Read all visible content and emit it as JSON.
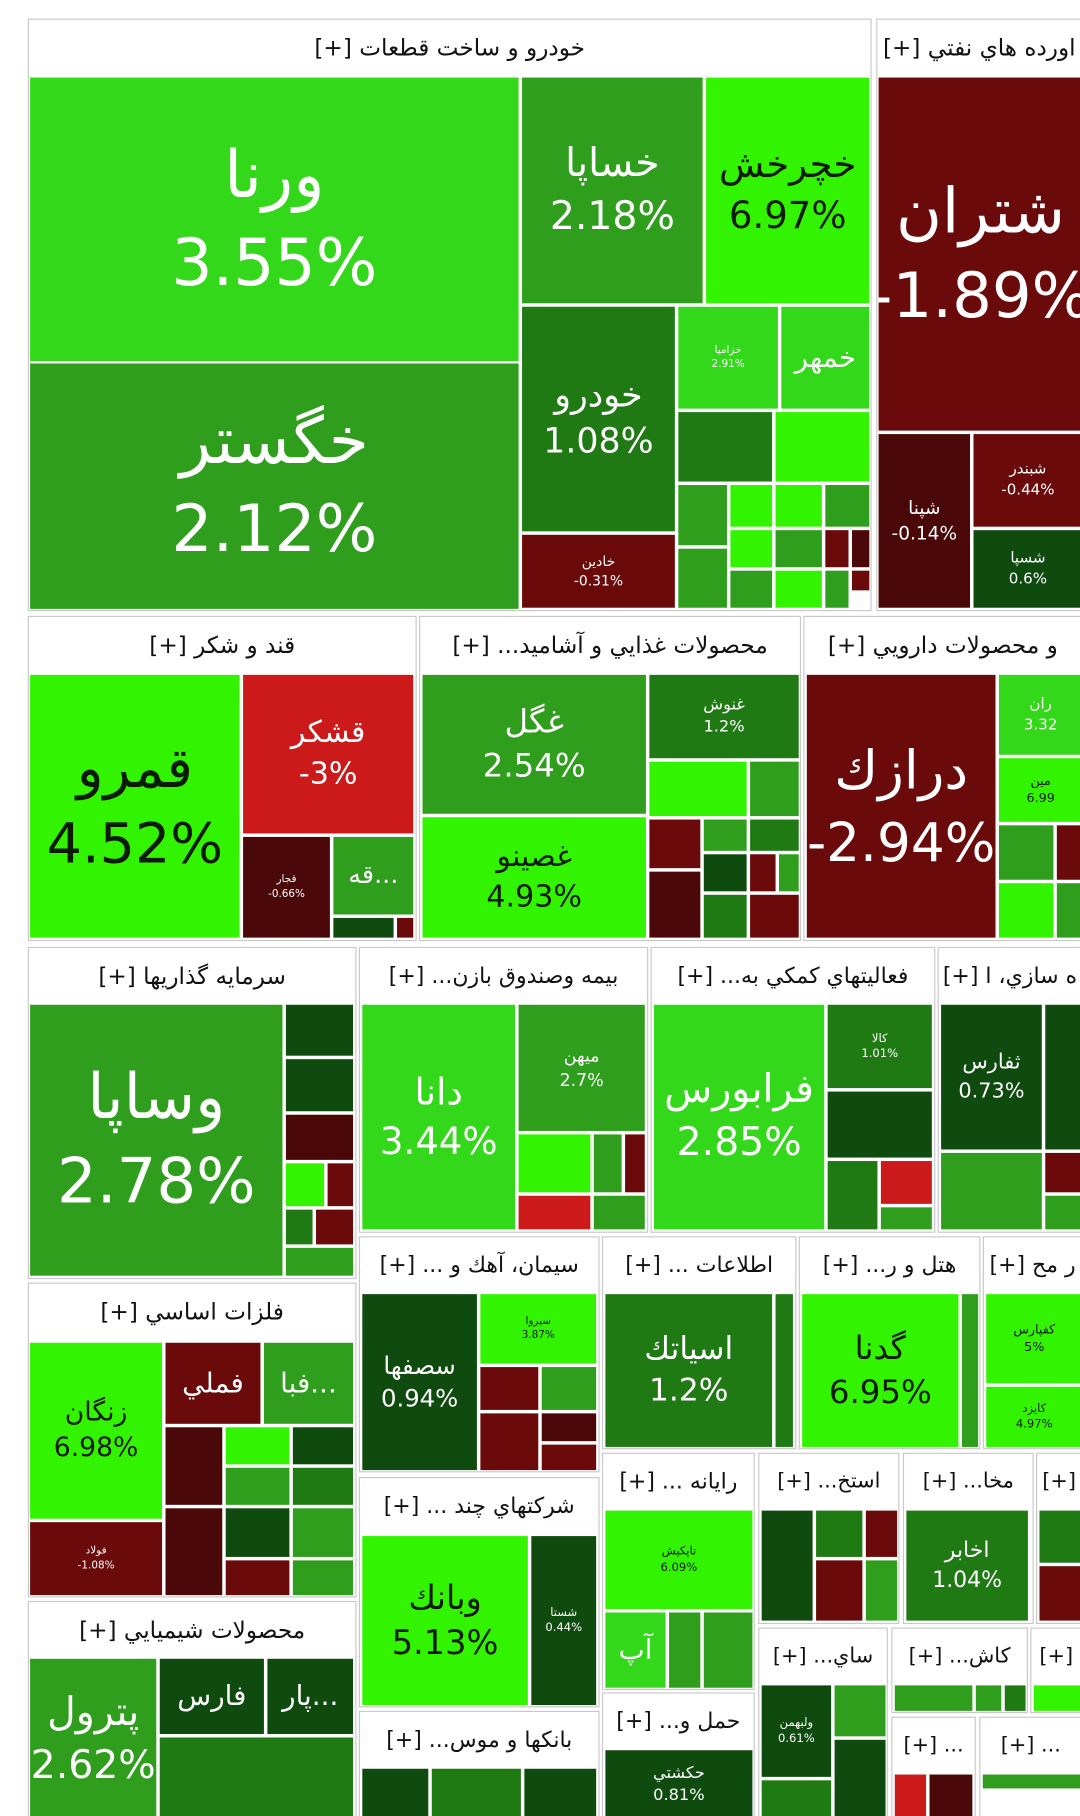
{
  "sectors": [
    {
      "title": "خودرو و ساخت قطعات [+]",
      "tiles": [
        {
          "name": "ورنا",
          "change": "3.55%"
        },
        {
          "name": "خگستر",
          "change": "2.12%"
        },
        {
          "name": "خساپا",
          "change": "2.18%"
        },
        {
          "name": "خچرخش",
          "change": "6.97%"
        },
        {
          "name": "خودرو",
          "change": "1.08%"
        },
        {
          "name": "خادين",
          "change": "-0.31%"
        },
        {
          "name": "خزاميا",
          "change": "2.91%"
        },
        {
          "name": "خمهر"
        }
      ]
    },
    {
      "title": "اورده هاي نفتي [+]",
      "tiles": [
        {
          "name": "شتران",
          "change": "-1.89%"
        },
        {
          "name": "شپنا",
          "change": "-0.14%"
        },
        {
          "name": "شبندر",
          "change": "-0.44%"
        },
        {
          "name": "شسپا",
          "change": "0.6%"
        }
      ]
    },
    {
      "title": "قند و شكر [+]",
      "tiles": [
        {
          "name": "قمرو",
          "change": "4.52%"
        },
        {
          "name": "قشكر",
          "change": "-3%"
        },
        {
          "name": "قجار",
          "change": "-0.66%"
        },
        {
          "name": "قه..."
        }
      ]
    },
    {
      "title": "محصولات غذايي و آشاميد... [+]",
      "tiles": [
        {
          "name": "غگل",
          "change": "2.54%"
        },
        {
          "name": "غصينو",
          "change": "4.93%"
        },
        {
          "name": "غنوش",
          "change": "1.2%"
        }
      ]
    },
    {
      "title": "و محصولات دارويي [+]",
      "tiles": [
        {
          "name": "درازك",
          "change": "-2.94%"
        },
        {
          "name": "ران",
          "change": "3.32"
        },
        {
          "name": "مين",
          "change": "6.99"
        }
      ]
    },
    {
      "title": "سرمايه گذاريها [+]",
      "tiles": [
        {
          "name": "وساپا",
          "change": "2.78%"
        }
      ]
    },
    {
      "title": "بيمه وصندوق بازن... [+]",
      "tiles": [
        {
          "name": "دانا",
          "change": "3.44%"
        },
        {
          "name": "ميهن",
          "change": "2.7%"
        }
      ]
    },
    {
      "title": "فعاليتهاي كمكي به... [+]",
      "tiles": [
        {
          "name": "فرابورس",
          "change": "2.85%"
        },
        {
          "name": "كالا",
          "change": "1.01%"
        }
      ]
    },
    {
      "title": "ه سازي، ا [+]",
      "tiles": [
        {
          "name": "ثفارس",
          "change": "0.73%"
        }
      ]
    },
    {
      "title": "فلزات اساسي [+]",
      "tiles": [
        {
          "name": "زنگان",
          "change": "6.98%"
        },
        {
          "name": "فملي"
        },
        {
          "name": "فبا..."
        },
        {
          "name": "فولاد",
          "change": "-1.08%"
        }
      ]
    },
    {
      "title": "سيمان، آهك و ... [+]",
      "tiles": [
        {
          "name": "سصفها",
          "change": "0.94%"
        },
        {
          "name": "سيروا",
          "change": "3.87%"
        }
      ]
    },
    {
      "title": "اطلاعات ... [+]",
      "tiles": [
        {
          "name": "اسياتك",
          "change": "1.2%"
        }
      ]
    },
    {
      "title": "هتل و ر... [+]",
      "tiles": [
        {
          "name": "گدنا",
          "change": "6.95%"
        }
      ]
    },
    {
      "title": "ر مح [+]",
      "tiles": [
        {
          "name": "كفپارس",
          "change": "5%"
        },
        {
          "name": "كايزد",
          "change": "4.97%"
        }
      ]
    },
    {
      "title": "شركتهاي چند ... [+]",
      "tiles": [
        {
          "name": "وبانك",
          "change": "5.13%"
        },
        {
          "name": "شستا",
          "change": "0.44%"
        }
      ]
    },
    {
      "title": "رايانه ... [+]",
      "tiles": [
        {
          "name": "تاپكيش",
          "change": "6.09%"
        },
        {
          "name": "آپ"
        }
      ]
    },
    {
      "title": "استخ... [+]",
      "tiles": []
    },
    {
      "title": "مخا... [+]",
      "tiles": [
        {
          "name": "اخابر",
          "change": "1.04%"
        }
      ]
    },
    {
      "title": "[+]",
      "tiles": []
    },
    {
      "title": "محصولات شيميايي [+]",
      "tiles": [
        {
          "name": "پترول",
          "change": "2.62%"
        },
        {
          "name": "فارس"
        },
        {
          "name": "پار..."
        }
      ]
    },
    {
      "title": "بانكها و موس... [+]",
      "tiles": []
    },
    {
      "title": "حمل و... [+]",
      "tiles": [
        {
          "name": "حكشتي",
          "change": "0.81%"
        }
      ]
    },
    {
      "title": "ساي... [+]",
      "tiles": [
        {
          "name": "ولبهمن",
          "change": "0.61%"
        }
      ]
    },
    {
      "title": "كاش... [+]",
      "tiles": []
    },
    {
      "title": "[+]",
      "tiles": []
    },
    {
      "title": "... [+]",
      "tiles": []
    },
    {
      "title": "... [+]",
      "tiles": []
    }
  ]
}
